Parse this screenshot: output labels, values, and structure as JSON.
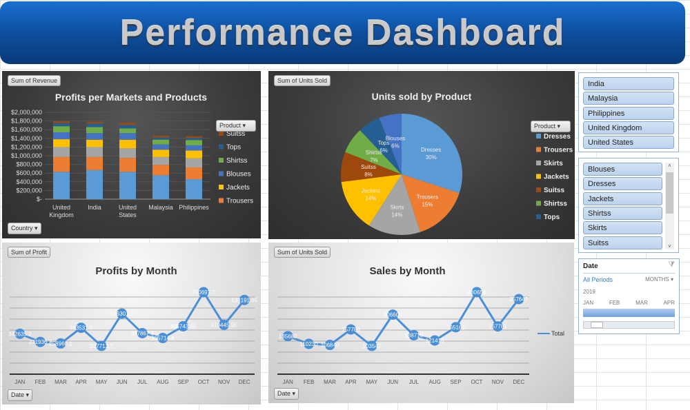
{
  "header": {
    "title": "Performance Dashboard"
  },
  "colors": {
    "Dresses": "#5b9bd5",
    "Trousers": "#ed7d31",
    "Skirts": "#a5a5a5",
    "Jackets": "#ffc000",
    "Blouses": "#4472c4",
    "Shirtss": "#70ad47",
    "Tops": "#255e91",
    "Suitss": "#9e480e",
    "line": "#4a8fd6"
  },
  "charts": [
    {
      "field_button": "Sum of Revenue",
      "axis_button": "Country",
      "legend_button": "Product",
      "chart_data": {
        "type": "bar",
        "stacked": true,
        "title": "Profits per Markets and Products",
        "categories": [
          "United Kingdom",
          "India",
          "United States",
          "Malaysia",
          "Philippines"
        ],
        "ylim": [
          0,
          2000000
        ],
        "yticks": [
          "$-",
          "$200,000",
          "$400,000",
          "$600,000",
          "$800,000",
          "$1,000,000",
          "$1,200,000",
          "$1,400,000",
          "$1,600,000",
          "$1,800,000",
          "$2,000,000"
        ],
        "legend": [
          "Suitss",
          "Tops",
          "Shirtss",
          "Blouses",
          "Jackets",
          "Trousers"
        ],
        "legend_placement": "right",
        "grid": true,
        "series": [
          {
            "name": "Dresses",
            "values": [
              630000,
              670000,
              630000,
              550000,
              460000
            ]
          },
          {
            "name": "Trousers",
            "values": [
              340000,
              300000,
              320000,
              240000,
              270000
            ]
          },
          {
            "name": "Skirts",
            "values": [
              230000,
              230000,
              220000,
              180000,
              210000
            ]
          },
          {
            "name": "Jackets",
            "values": [
              180000,
              170000,
              200000,
              170000,
              180000
            ]
          },
          {
            "name": "Blouses",
            "values": [
              160000,
              150000,
              150000,
              120000,
              120000
            ]
          },
          {
            "name": "Shirtss",
            "values": [
              140000,
              140000,
              110000,
              110000,
              120000
            ]
          },
          {
            "name": "Tops",
            "values": [
              70000,
              80000,
              80000,
              50000,
              50000
            ]
          },
          {
            "name": "Suitss",
            "values": [
              40000,
              40000,
              50000,
              40000,
              40000
            ]
          }
        ]
      }
    },
    {
      "field_button": "Sum of Units Sold",
      "legend_button": "Product",
      "chart_data": {
        "type": "pie",
        "title": "Units sold by Product",
        "legend_placement": "right",
        "slices": [
          {
            "name": "Dresses",
            "value": 30,
            "label": "30%"
          },
          {
            "name": "Trousers",
            "value": 15,
            "label": "15%"
          },
          {
            "name": "Skirts",
            "value": 14,
            "label": "14%"
          },
          {
            "name": "Jackets",
            "value": 14,
            "label": "14%"
          },
          {
            "name": "Suitss",
            "value": 8,
            "label": "8%"
          },
          {
            "name": "Shirtss",
            "value": 7,
            "label": "7%"
          },
          {
            "name": "Tops",
            "value": 6,
            "label": "6%"
          },
          {
            "name": "Blouses",
            "value": 6,
            "label": "6%"
          }
        ],
        "legend": [
          "Dresses",
          "Trousers",
          "Skirts",
          "Jackets",
          "Suitss",
          "Shirtss",
          "Tops"
        ]
      }
    },
    {
      "field_button": "Sum of Profit",
      "axis_button": "Date",
      "chart_data": {
        "type": "line",
        "title": "Profits by Month",
        "categories": [
          "JAN",
          "FEB",
          "MAR",
          "APR",
          "MAY",
          "JUN",
          "JUL",
          "AUG",
          "SEP",
          "OCT",
          "NOV",
          "DEC"
        ],
        "values": [
          342635.2,
          271936.2,
          258966.1,
          393531.9,
          237713.7,
          516301.5,
          347867.3,
          305714.4,
          406743.65,
          700697.7,
          419445.95,
          633191.65
        ],
        "grid": true
      }
    },
    {
      "field_button": "Sum of Units Sold",
      "axis_button": "Date",
      "chart_data": {
        "type": "line",
        "title": "Sales by Month",
        "categories": [
          "JAN",
          "FEB",
          "MAR",
          "APR",
          "MAY",
          "JUN",
          "JUL",
          "AUG",
          "SEP",
          "OCT",
          "NOV",
          "DEC"
        ],
        "values": [
          135682,
          110230,
          106840,
          157786,
          103547,
          206604,
          138710,
          121410,
          165161,
          280658,
          167781,
          257647
        ],
        "legend": [
          "Total"
        ],
        "legend_placement": "right",
        "grid": true
      }
    }
  ],
  "slicers": {
    "country": [
      "India",
      "Malaysia",
      "Philippines",
      "United Kingdom",
      "United States"
    ],
    "product": [
      "Blouses",
      "Dresses",
      "Jackets",
      "Shirtss",
      "Skirts",
      "Suitss"
    ],
    "date": {
      "title": "Date",
      "all_periods": "All Periods",
      "level": "MONTHS",
      "year": "2019",
      "months": [
        "JAN",
        "FEB",
        "MAR",
        "APR"
      ]
    }
  }
}
